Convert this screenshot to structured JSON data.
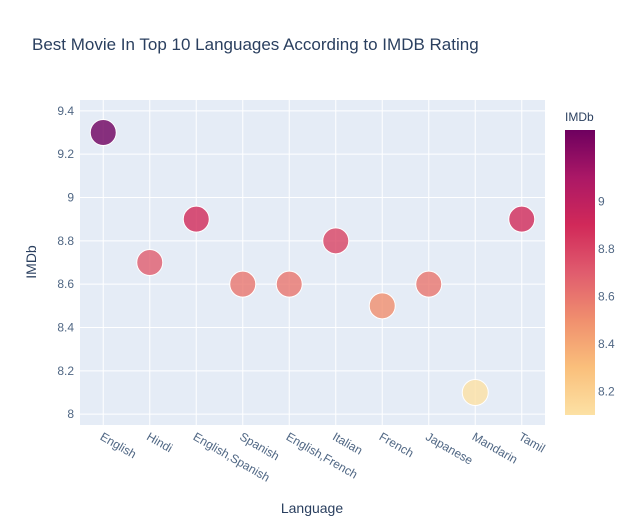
{
  "chart_data": {
    "type": "scatter",
    "title": "Best Movie In Top 10 Languages According to IMDB Rating",
    "xlabel": "Language",
    "ylabel": "IMDb",
    "categories": [
      "English",
      "Hindi",
      "English,Spanish",
      "Spanish",
      "English,French",
      "Italian",
      "French",
      "Japanese",
      "Mandarin",
      "Tamil"
    ],
    "values": [
      9.3,
      8.7,
      8.9,
      8.6,
      8.6,
      8.8,
      8.5,
      8.6,
      8.1,
      8.9
    ],
    "ylim": [
      7.95,
      9.45
    ],
    "yticks": [
      8,
      8.2,
      8.4,
      8.6,
      8.8,
      9,
      9.2,
      9.4
    ],
    "ytick_labels": [
      "8",
      "8.2",
      "8.4",
      "8.6",
      "8.8",
      "9",
      "9.2",
      "9.4"
    ],
    "grid": true,
    "colorbar": {
      "title": "IMDb",
      "range": [
        8.1,
        9.3
      ],
      "ticks": [
        8.2,
        8.4,
        8.6,
        8.8,
        9
      ],
      "tick_labels": [
        "8.2",
        "8.4",
        "8.6",
        "8.8",
        "9"
      ],
      "colorscale": [
        "#fce1a4",
        "#fabf7b",
        "#f08f6e",
        "#e05c6e",
        "#d12959",
        "#ab1866",
        "#6e005f"
      ]
    },
    "colors": {
      "plot_bg": "#e5ecf6",
      "grid": "#ffffff",
      "text": "#2a3f5f",
      "tick_text": "#506784"
    }
  }
}
